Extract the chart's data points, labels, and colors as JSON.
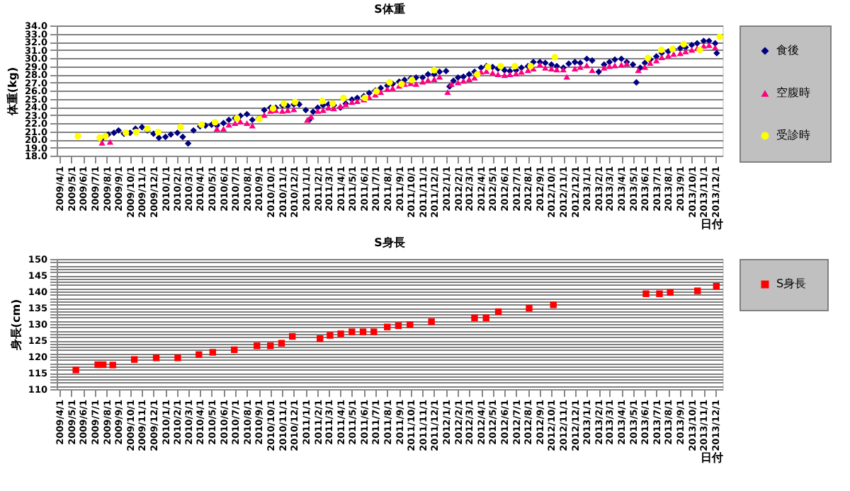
{
  "chart_data": [
    {
      "type": "scatter",
      "title": "S体重",
      "xlabel": "日付",
      "ylabel": "体重(kg)",
      "grid": "y",
      "legend": "right",
      "xlim": [
        "2009-03-24",
        "2013-12-20"
      ],
      "xticks": [
        {
          "value": "2009-04-01",
          "label": "2009/4/1"
        },
        {
          "value": "2009-05-01",
          "label": "2009/5/1"
        },
        {
          "value": "2009-06-01",
          "label": "2009/6/1"
        },
        {
          "value": "2009-07-01",
          "label": "2009/7/1"
        },
        {
          "value": "2009-08-01",
          "label": "2009/8/1"
        },
        {
          "value": "2009-09-01",
          "label": "2009/9/1"
        },
        {
          "value": "2009-10-01",
          "label": "2009/10/1"
        },
        {
          "value": "2009-11-01",
          "label": "2009/11/1"
        },
        {
          "value": "2009-12-01",
          "label": "2009/12/1"
        },
        {
          "value": "2010-01-01",
          "label": "2010/1/1"
        },
        {
          "value": "2010-02-01",
          "label": "2010/2/1"
        },
        {
          "value": "2010-03-01",
          "label": "2010/3/1"
        },
        {
          "value": "2010-04-01",
          "label": "2010/4/1"
        },
        {
          "value": "2010-05-01",
          "label": "2010/5/1"
        },
        {
          "value": "2010-06-01",
          "label": "2010/6/1"
        },
        {
          "value": "2010-07-01",
          "label": "2010/7/1"
        },
        {
          "value": "2010-08-01",
          "label": "2010/8/1"
        },
        {
          "value": "2010-09-01",
          "label": "2010/9/1"
        },
        {
          "value": "2010-10-01",
          "label": "2010/10/1"
        },
        {
          "value": "2010-11-01",
          "label": "2010/11/1"
        },
        {
          "value": "2010-12-01",
          "label": "2010/12/1"
        },
        {
          "value": "2011-01-01",
          "label": "2011/1/1"
        },
        {
          "value": "2011-02-01",
          "label": "2011/2/1"
        },
        {
          "value": "2011-03-01",
          "label": "2011/3/1"
        },
        {
          "value": "2011-04-01",
          "label": "2011/4/1"
        },
        {
          "value": "2011-05-01",
          "label": "2011/5/1"
        },
        {
          "value": "2011-06-01",
          "label": "2011/6/1"
        },
        {
          "value": "2011-07-01",
          "label": "2011/7/1"
        },
        {
          "value": "2011-08-01",
          "label": "2011/8/1"
        },
        {
          "value": "2011-09-01",
          "label": "2011/9/1"
        },
        {
          "value": "2011-10-01",
          "label": "2011/10/1"
        },
        {
          "value": "2011-11-01",
          "label": "2011/11/1"
        },
        {
          "value": "2011-12-01",
          "label": "2011/12/1"
        },
        {
          "value": "2012-01-01",
          "label": "2012/1/1"
        },
        {
          "value": "2012-02-01",
          "label": "2012/2/1"
        },
        {
          "value": "2012-03-01",
          "label": "2012/3/1"
        },
        {
          "value": "2012-04-01",
          "label": "2012/4/1"
        },
        {
          "value": "2012-05-01",
          "label": "2012/5/1"
        },
        {
          "value": "2012-06-01",
          "label": "2012/6/1"
        },
        {
          "value": "2012-07-01",
          "label": "2012/7/1"
        },
        {
          "value": "2012-08-01",
          "label": "2012/8/1"
        },
        {
          "value": "2012-09-01",
          "label": "2012/9/1"
        },
        {
          "value": "2012-10-01",
          "label": "2012/10/1"
        },
        {
          "value": "2012-11-01",
          "label": "2012/11/1"
        },
        {
          "value": "2012-12-01",
          "label": "2012/12/1"
        },
        {
          "value": "2013-01-01",
          "label": "2013/1/1"
        },
        {
          "value": "2013-02-01",
          "label": "2013/2/1"
        },
        {
          "value": "2013-03-01",
          "label": "2013/3/1"
        },
        {
          "value": "2013-04-01",
          "label": "2013/4/1"
        },
        {
          "value": "2013-05-01",
          "label": "2013/5/1"
        },
        {
          "value": "2013-06-01",
          "label": "2013/6/1"
        },
        {
          "value": "2013-07-01",
          "label": "2013/7/1"
        },
        {
          "value": "2013-08-01",
          "label": "2013/8/1"
        },
        {
          "value": "2013-09-01",
          "label": "2013/9/1"
        },
        {
          "value": "2013-10-01",
          "label": "2013/10/1"
        },
        {
          "value": "2013-11-01",
          "label": "2013/11/1"
        },
        {
          "value": "2013-12-01",
          "label": "2013/12/1"
        }
      ],
      "ylim": [
        18,
        34
      ],
      "yticks": [
        {
          "value": 18,
          "label": "18.0"
        },
        {
          "value": 19,
          "label": "19.0"
        },
        {
          "value": 20,
          "label": "20.0"
        },
        {
          "value": 21,
          "label": "21.0"
        },
        {
          "value": 22,
          "label": "22.0"
        },
        {
          "value": 23,
          "label": "23.0"
        },
        {
          "value": 24,
          "label": "24.0"
        },
        {
          "value": 25,
          "label": "25.0"
        },
        {
          "value": 26,
          "label": "26.0"
        },
        {
          "value": 27,
          "label": "27.0"
        },
        {
          "value": 28,
          "label": "28.0"
        },
        {
          "value": 29,
          "label": "29.0"
        },
        {
          "value": 30,
          "label": "30.0"
        },
        {
          "value": 31,
          "label": "31.0"
        },
        {
          "value": 32,
          "label": "32.0"
        },
        {
          "value": 33,
          "label": "33.0"
        },
        {
          "value": 34,
          "label": "34.0"
        }
      ],
      "series": [
        {
          "name": "食後",
          "color": "#000080",
          "marker": "diamond",
          "x": [
            "2009-07-20",
            "2009-08-05",
            "2009-08-20",
            "2009-09-01",
            "2009-09-15",
            "2009-10-01",
            "2009-10-15",
            "2009-11-01",
            "2009-11-15",
            "2009-12-01",
            "2009-12-15",
            "2010-01-01",
            "2010-01-15",
            "2010-02-01",
            "2010-02-15",
            "2010-03-01",
            "2010-03-15",
            "2010-04-01",
            "2010-04-15",
            "2010-05-01",
            "2010-05-15",
            "2010-06-01",
            "2010-06-15",
            "2010-07-01",
            "2010-07-15",
            "2010-08-01",
            "2010-08-15",
            "2010-09-01",
            "2010-09-15",
            "2010-10-01",
            "2010-10-15",
            "2010-11-01",
            "2010-11-15",
            "2010-12-01",
            "2010-12-15",
            "2011-01-01",
            "2011-01-10",
            "2011-01-20",
            "2011-02-01",
            "2011-02-15",
            "2011-03-01",
            "2011-03-15",
            "2011-04-01",
            "2011-04-15",
            "2011-05-01",
            "2011-05-15",
            "2011-06-01",
            "2011-06-15",
            "2011-07-01",
            "2011-07-15",
            "2011-08-01",
            "2011-08-15",
            "2011-09-01",
            "2011-09-15",
            "2011-10-01",
            "2011-10-15",
            "2011-11-01",
            "2011-11-15",
            "2011-12-01",
            "2011-12-15",
            "2012-01-01",
            "2012-01-10",
            "2012-01-20",
            "2012-02-01",
            "2012-02-15",
            "2012-03-01",
            "2012-03-15",
            "2012-04-01",
            "2012-04-15",
            "2012-05-01",
            "2012-05-15",
            "2012-06-01",
            "2012-06-15",
            "2012-07-01",
            "2012-07-15",
            "2012-08-01",
            "2012-08-15",
            "2012-09-01",
            "2012-09-15",
            "2012-10-01",
            "2012-10-15",
            "2012-11-01",
            "2012-11-15",
            "2012-12-01",
            "2012-12-15",
            "2013-01-01",
            "2013-01-15",
            "2013-02-01",
            "2013-02-15",
            "2013-03-01",
            "2013-03-15",
            "2013-04-01",
            "2013-04-15",
            "2013-05-01",
            "2013-05-10",
            "2013-05-20",
            "2013-06-01",
            "2013-06-15",
            "2013-07-01",
            "2013-07-15",
            "2013-08-01",
            "2013-08-15",
            "2013-09-01",
            "2013-09-15",
            "2013-10-01",
            "2013-10-15",
            "2013-11-01",
            "2013-11-15",
            "2013-12-01",
            "2013-12-05"
          ],
          "values": [
            20.1,
            20.6,
            20.8,
            21.1,
            20.7,
            20.8,
            21.3,
            21.5,
            21.1,
            20.7,
            20.2,
            20.3,
            20.6,
            20.8,
            20.3,
            19.5,
            21.1,
            21.6,
            21.7,
            21.8,
            21.7,
            22.0,
            22.4,
            22.6,
            22.9,
            23.1,
            22.4,
            22.6,
            23.6,
            23.9,
            23.9,
            24.2,
            24.1,
            24.3,
            24.3,
            23.6,
            22.4,
            23.4,
            23.9,
            24.2,
            24.3,
            24.2,
            23.9,
            24.4,
            24.9,
            25.1,
            25.3,
            25.7,
            26.0,
            26.3,
            26.6,
            26.8,
            27.1,
            27.3,
            27.5,
            27.6,
            27.6,
            28.0,
            28.0,
            28.3,
            28.4,
            26.5,
            27.2,
            27.6,
            27.7,
            28.0,
            28.3,
            28.8,
            29.0,
            28.9,
            28.7,
            28.5,
            28.4,
            28.5,
            28.8,
            29.0,
            29.5,
            29.5,
            29.4,
            29.2,
            29.0,
            28.8,
            29.3,
            29.5,
            29.4,
            29.9,
            29.7,
            28.3,
            29.2,
            29.5,
            29.8,
            29.9,
            29.5,
            29.2,
            27.0,
            28.8,
            29.4,
            29.8,
            30.2,
            30.6,
            30.8,
            31.1,
            31.2,
            31.3,
            31.6,
            31.8,
            32.1,
            32.1,
            31.8,
            30.6
          ]
        },
        {
          "name": "空腹時",
          "color": "#ff0080",
          "marker": "triangle",
          "x": [
            "2009-07-20",
            "2009-08-10",
            "2010-05-15",
            "2010-06-01",
            "2010-06-15",
            "2010-07-01",
            "2010-07-15",
            "2010-08-01",
            "2010-08-15",
            "2010-09-15",
            "2010-10-01",
            "2010-10-15",
            "2010-11-01",
            "2010-11-15",
            "2010-12-01",
            "2011-01-05",
            "2011-01-15",
            "2011-02-01",
            "2011-02-15",
            "2011-03-01",
            "2011-03-15",
            "2011-04-01",
            "2011-04-15",
            "2011-05-01",
            "2011-05-15",
            "2011-06-01",
            "2011-06-15",
            "2011-07-01",
            "2011-07-15",
            "2011-08-01",
            "2011-08-15",
            "2011-09-01",
            "2011-09-15",
            "2011-10-01",
            "2011-10-15",
            "2011-11-01",
            "2011-11-15",
            "2011-12-01",
            "2011-12-15",
            "2012-01-05",
            "2012-01-15",
            "2012-02-01",
            "2012-02-15",
            "2012-03-01",
            "2012-03-15",
            "2012-04-01",
            "2012-04-15",
            "2012-05-01",
            "2012-05-15",
            "2012-06-01",
            "2012-06-15",
            "2012-07-01",
            "2012-07-15",
            "2012-08-01",
            "2012-08-15",
            "2012-09-01",
            "2012-09-15",
            "2012-10-01",
            "2012-10-15",
            "2012-11-01",
            "2012-11-10",
            "2012-12-01",
            "2012-12-15",
            "2013-01-01",
            "2013-01-15",
            "2013-02-15",
            "2013-03-01",
            "2013-03-15",
            "2013-04-01",
            "2013-04-15",
            "2013-05-15",
            "2013-06-01",
            "2013-06-15",
            "2013-07-01",
            "2013-07-15",
            "2013-08-01",
            "2013-08-15",
            "2013-09-01",
            "2013-09-15",
            "2013-10-01",
            "2013-10-15",
            "2013-11-01",
            "2013-11-15",
            "2013-12-01"
          ],
          "values": [
            19.6,
            19.7,
            21.3,
            21.3,
            21.8,
            22.0,
            22.2,
            22.0,
            21.7,
            23.0,
            23.5,
            23.6,
            23.5,
            23.6,
            23.7,
            22.4,
            22.8,
            23.5,
            23.6,
            23.9,
            23.8,
            24.1,
            24.3,
            24.6,
            24.7,
            24.9,
            25.2,
            25.5,
            25.8,
            26.2,
            26.3,
            26.6,
            26.8,
            26.9,
            26.8,
            27.1,
            27.3,
            27.4,
            27.7,
            25.8,
            26.8,
            27.0,
            27.2,
            27.4,
            27.6,
            28.3,
            28.4,
            28.2,
            28.0,
            27.9,
            28.0,
            28.1,
            28.3,
            28.5,
            28.7,
            29.2,
            28.8,
            28.7,
            28.6,
            28.6,
            27.7,
            28.7,
            28.9,
            29.1,
            28.5,
            28.8,
            29.0,
            29.1,
            29.2,
            29.3,
            28.5,
            28.9,
            29.4,
            29.7,
            30.1,
            30.3,
            30.5,
            30.6,
            30.8,
            31.0,
            31.2,
            31.5,
            31.6,
            31.3
          ]
        },
        {
          "name": "受診時",
          "color": "#ffff00",
          "marker": "circle",
          "x": [
            "2009-05-18",
            "2009-07-14",
            "2009-07-29",
            "2009-09-20",
            "2009-10-17",
            "2009-11-15",
            "2009-12-13",
            "2010-02-09",
            "2010-04-05",
            "2010-05-10",
            "2010-07-06",
            "2010-09-02",
            "2010-10-08",
            "2010-11-05",
            "2010-12-04",
            "2011-02-13",
            "2011-03-12",
            "2011-04-09",
            "2011-06-04",
            "2011-07-04",
            "2011-08-07",
            "2011-09-07",
            "2011-10-04",
            "2011-12-01",
            "2012-03-22",
            "2012-04-19",
            "2012-05-22",
            "2012-06-28",
            "2012-08-08",
            "2012-10-10",
            "2013-06-09",
            "2013-07-14",
            "2013-08-12",
            "2013-09-10",
            "2013-10-22",
            "2013-12-13"
          ],
          "values": [
            20.4,
            20.2,
            20.4,
            20.8,
            20.9,
            21.3,
            20.9,
            21.5,
            21.8,
            22.1,
            22.6,
            22.5,
            23.8,
            24.4,
            24.6,
            24.7,
            24.4,
            25.1,
            25.1,
            25.9,
            27.0,
            26.8,
            27.3,
            28.5,
            28.0,
            28.9,
            29.0,
            29.0,
            29.0,
            30.1,
            30.0,
            31.0,
            31.1,
            31.7,
            31.0,
            32.6
          ]
        }
      ]
    },
    {
      "type": "scatter",
      "title": "S身長",
      "xlabel": "日付",
      "ylabel": "身長(cm)",
      "grid": "y",
      "legend": "right",
      "xlim": [
        "2009-03-24",
        "2013-12-20"
      ],
      "xticks": [
        {
          "value": "2009-04-01",
          "label": "2009/4/1"
        },
        {
          "value": "2009-05-01",
          "label": "2009/5/1"
        },
        {
          "value": "2009-06-01",
          "label": "2009/6/1"
        },
        {
          "value": "2009-07-01",
          "label": "2009/7/1"
        },
        {
          "value": "2009-08-01",
          "label": "2009/8/1"
        },
        {
          "value": "2009-09-01",
          "label": "2009/9/1"
        },
        {
          "value": "2009-10-01",
          "label": "2009/10/1"
        },
        {
          "value": "2009-11-01",
          "label": "2009/11/1"
        },
        {
          "value": "2009-12-01",
          "label": "2009/12/1"
        },
        {
          "value": "2010-01-01",
          "label": "2010/1/1"
        },
        {
          "value": "2010-02-01",
          "label": "2010/2/1"
        },
        {
          "value": "2010-03-01",
          "label": "2010/3/1"
        },
        {
          "value": "2010-04-01",
          "label": "2010/4/1"
        },
        {
          "value": "2010-05-01",
          "label": "2010/5/1"
        },
        {
          "value": "2010-06-01",
          "label": "2010/6/1"
        },
        {
          "value": "2010-07-01",
          "label": "2010/7/1"
        },
        {
          "value": "2010-08-01",
          "label": "2010/8/1"
        },
        {
          "value": "2010-09-01",
          "label": "2010/9/1"
        },
        {
          "value": "2010-10-01",
          "label": "2010/10/1"
        },
        {
          "value": "2010-11-01",
          "label": "2010/11/1"
        },
        {
          "value": "2010-12-01",
          "label": "2010/12/1"
        },
        {
          "value": "2011-01-01",
          "label": "2011/1/1"
        },
        {
          "value": "2011-02-01",
          "label": "2011/2/1"
        },
        {
          "value": "2011-03-01",
          "label": "2011/3/1"
        },
        {
          "value": "2011-04-01",
          "label": "2011/4/1"
        },
        {
          "value": "2011-05-01",
          "label": "2011/5/1"
        },
        {
          "value": "2011-06-01",
          "label": "2011/6/1"
        },
        {
          "value": "2011-07-01",
          "label": "2011/7/1"
        },
        {
          "value": "2011-08-01",
          "label": "2011/8/1"
        },
        {
          "value": "2011-09-01",
          "label": "2011/9/1"
        },
        {
          "value": "2011-10-01",
          "label": "2011/10/1"
        },
        {
          "value": "2011-11-01",
          "label": "2011/11/1"
        },
        {
          "value": "2011-12-01",
          "label": "2011/12/1"
        },
        {
          "value": "2012-01-01",
          "label": "2012/1/1"
        },
        {
          "value": "2012-02-01",
          "label": "2012/2/1"
        },
        {
          "value": "2012-03-01",
          "label": "2012/3/1"
        },
        {
          "value": "2012-04-01",
          "label": "2012/4/1"
        },
        {
          "value": "2012-05-01",
          "label": "2012/5/1"
        },
        {
          "value": "2012-06-01",
          "label": "2012/6/1"
        },
        {
          "value": "2012-07-01",
          "label": "2012/7/1"
        },
        {
          "value": "2012-08-01",
          "label": "2012/8/1"
        },
        {
          "value": "2012-09-01",
          "label": "2012/9/1"
        },
        {
          "value": "2012-10-01",
          "label": "2012/10/1"
        },
        {
          "value": "2012-11-01",
          "label": "2012/11/1"
        },
        {
          "value": "2012-12-01",
          "label": "2012/12/1"
        },
        {
          "value": "2013-01-01",
          "label": "2013/1/1"
        },
        {
          "value": "2013-02-01",
          "label": "2013/2/1"
        },
        {
          "value": "2013-03-01",
          "label": "2013/3/1"
        },
        {
          "value": "2013-04-01",
          "label": "2013/4/1"
        },
        {
          "value": "2013-05-01",
          "label": "2013/5/1"
        },
        {
          "value": "2013-06-01",
          "label": "2013/6/1"
        },
        {
          "value": "2013-07-01",
          "label": "2013/7/1"
        },
        {
          "value": "2013-08-01",
          "label": "2013/8/1"
        },
        {
          "value": "2013-09-01",
          "label": "2013/9/1"
        },
        {
          "value": "2013-10-01",
          "label": "2013/10/1"
        },
        {
          "value": "2013-11-01",
          "label": "2013/11/1"
        },
        {
          "value": "2013-12-01",
          "label": "2013/12/1"
        }
      ],
      "ylim": [
        110,
        150
      ],
      "yticks": [
        110,
        {
          "value": 111,
          "label": null
        },
        {
          "value": 112,
          "label": null
        },
        {
          "value": 113,
          "label": null
        },
        {
          "value": 114,
          "label": null
        },
        115,
        {
          "value": 116,
          "label": null
        },
        {
          "value": 117,
          "label": null
        },
        {
          "value": 118,
          "label": null
        },
        {
          "value": 119,
          "label": null
        },
        120,
        {
          "value": 121,
          "label": null
        },
        {
          "value": 122,
          "label": null
        },
        {
          "value": 123,
          "label": null
        },
        {
          "value": 124,
          "label": null
        },
        125,
        {
          "value": 126,
          "label": null
        },
        {
          "value": 127,
          "label": null
        },
        {
          "value": 128,
          "label": null
        },
        {
          "value": 129,
          "label": null
        },
        130,
        {
          "value": 131,
          "label": null
        },
        {
          "value": 132,
          "label": null
        },
        {
          "value": 133,
          "label": null
        },
        {
          "value": 134,
          "label": null
        },
        135,
        {
          "value": 136,
          "label": null
        },
        {
          "value": 137,
          "label": null
        },
        {
          "value": 138,
          "label": null
        },
        {
          "value": 139,
          "label": null
        },
        140,
        {
          "value": 141,
          "label": null
        },
        {
          "value": 142,
          "label": null
        },
        {
          "value": 143,
          "label": null
        },
        {
          "value": 144,
          "label": null
        },
        145,
        {
          "value": 146,
          "label": null
        },
        {
          "value": 147,
          "label": null
        },
        {
          "value": 148,
          "label": null
        },
        {
          "value": 149,
          "label": null
        },
        150
      ],
      "series": [
        {
          "name": "S身長",
          "color": "#ff0000",
          "marker": "square",
          "x": [
            "2009-05-13",
            "2009-07-09",
            "2009-07-23",
            "2009-08-17",
            "2009-10-12",
            "2009-12-08",
            "2010-02-02",
            "2010-03-29",
            "2010-05-04",
            "2010-06-29",
            "2010-08-27",
            "2010-10-01",
            "2010-10-30",
            "2010-11-27",
            "2011-02-07",
            "2011-03-05",
            "2011-04-02",
            "2011-05-01",
            "2011-05-30",
            "2011-06-27",
            "2011-08-01",
            "2011-08-30",
            "2011-09-29",
            "2011-11-24",
            "2012-03-15",
            "2012-04-14",
            "2012-05-16",
            "2012-08-04",
            "2012-10-06",
            "2013-06-04",
            "2013-07-09",
            "2013-08-06",
            "2013-10-16",
            "2013-12-04"
          ],
          "values": [
            115.9,
            117.5,
            117.5,
            117.4,
            119.1,
            119.6,
            119.6,
            120.6,
            121.3,
            122.1,
            123.3,
            123.3,
            124.1,
            126.2,
            125.5,
            126.5,
            127.0,
            127.6,
            127.6,
            127.6,
            129.1,
            129.5,
            129.8,
            130.7,
            131.9,
            131.9,
            133.8,
            134.9,
            135.9,
            139.3,
            139.3,
            139.7,
            140.2,
            141.6
          ]
        }
      ]
    }
  ]
}
